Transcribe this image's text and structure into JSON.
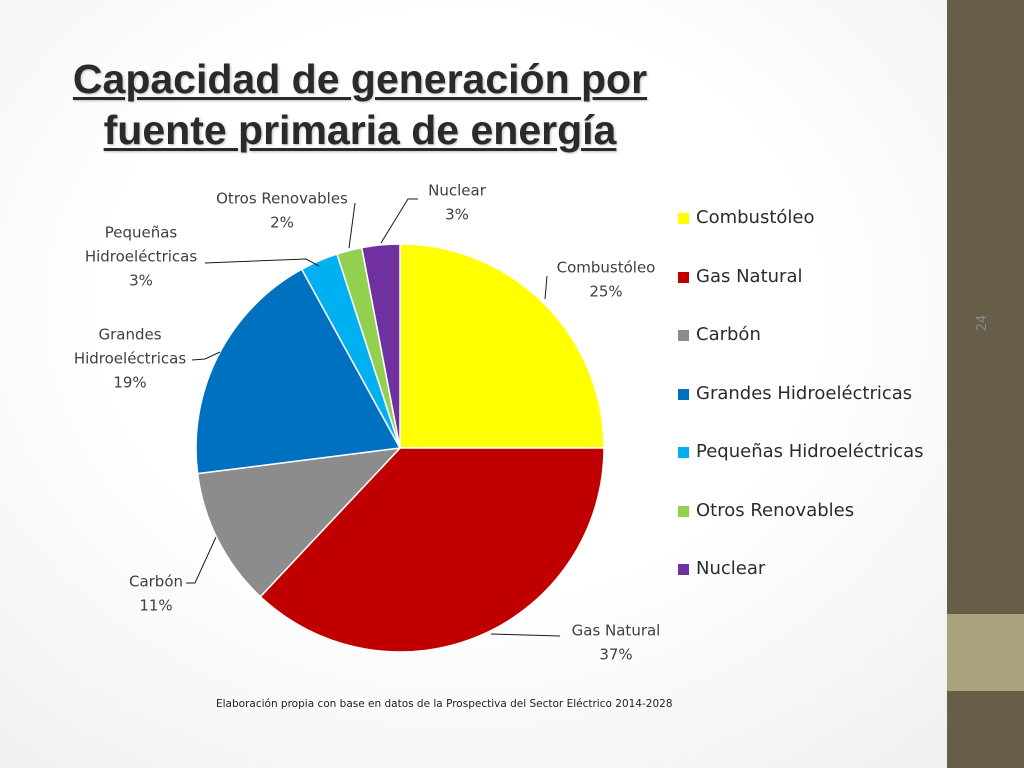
{
  "slide": {
    "title_line1": "Capacidad de generación por",
    "title_line2": "fuente primaria de energía",
    "slide_number": "24",
    "source_note": "Elaboración propia con base en datos de la Prospectiva del Sector Eléctrico 2014-2028"
  },
  "colors": {
    "sidebar": "#675e4a",
    "sidebar_accent": "#a9a37d",
    "label_text": "#404040"
  },
  "chart_data": {
    "type": "pie",
    "start_angle_deg": 0,
    "direction": "clockwise",
    "legend_position": "right",
    "slices": [
      {
        "name": "Combustóleo",
        "value": 25,
        "pct_label": "25%",
        "color": "#ffff00"
      },
      {
        "name": "Gas Natural",
        "value": 37,
        "pct_label": "37%",
        "color": "#c00000"
      },
      {
        "name": "Carbón",
        "value": 11,
        "pct_label": "11%",
        "color": "#8c8c8c"
      },
      {
        "name": "Grandes Hidroeléctricas",
        "value": 19,
        "pct_label": "19%",
        "color": "#0070c0"
      },
      {
        "name": "Pequeñas Hidroeléctricas",
        "value": 3,
        "pct_label": "3%",
        "color": "#00b0f0"
      },
      {
        "name": "Otros Renovables",
        "value": 2,
        "pct_label": "2%",
        "color": "#92d050"
      },
      {
        "name": "Nuclear",
        "value": 3,
        "pct_label": "3%",
        "color": "#7030a0"
      }
    ],
    "data_labels": [
      [
        "Combustóleo",
        "25%"
      ],
      [
        "Gas Natural",
        "37%"
      ],
      [
        "Carbón",
        "11%"
      ],
      [
        "Grandes",
        "Hidroeléctricas",
        "19%"
      ],
      [
        "Pequeñas",
        "Hidroeléctricas",
        "3%"
      ],
      [
        "Otros Renovables",
        "2%"
      ],
      [
        "Nuclear",
        "3%"
      ]
    ]
  }
}
